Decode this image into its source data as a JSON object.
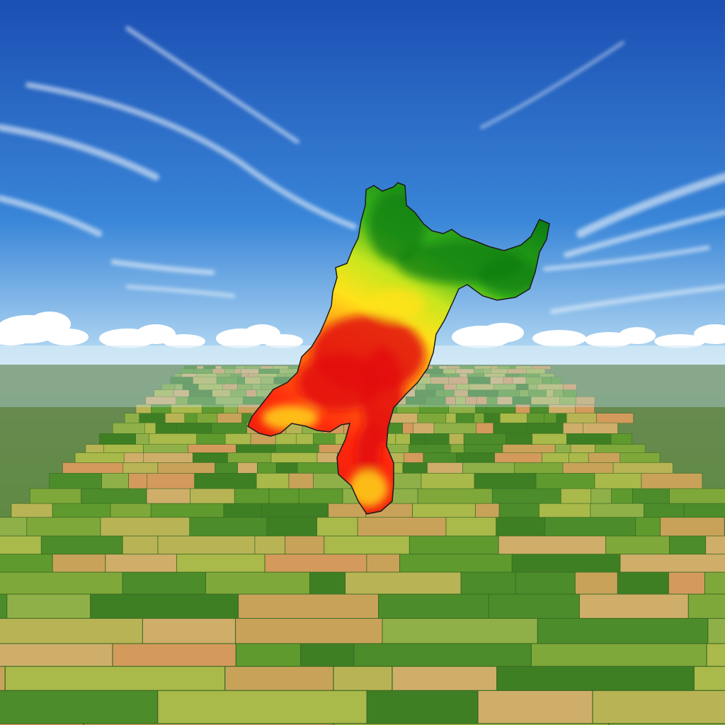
{
  "scene": {
    "sky_top": "#1b4fb3",
    "sky_mid": "#3a86d8",
    "sky_horizon": "#bfe0f5",
    "ground_far": "#6b8a55",
    "ground_near": "#4f8a2c",
    "field_colors": [
      "#7fa83a",
      "#a9b94a",
      "#c9a25a",
      "#d39a5c",
      "#5f9a2e",
      "#3f7f24",
      "#b8b455",
      "#8fb048",
      "#cfae6a",
      "#4c8c2a"
    ],
    "heatmap_colors": [
      "#0a7d12",
      "#3db51e",
      "#c8e61e",
      "#ffe21a",
      "#ff8a12",
      "#ff2a0e",
      "#e3120b"
    ]
  }
}
